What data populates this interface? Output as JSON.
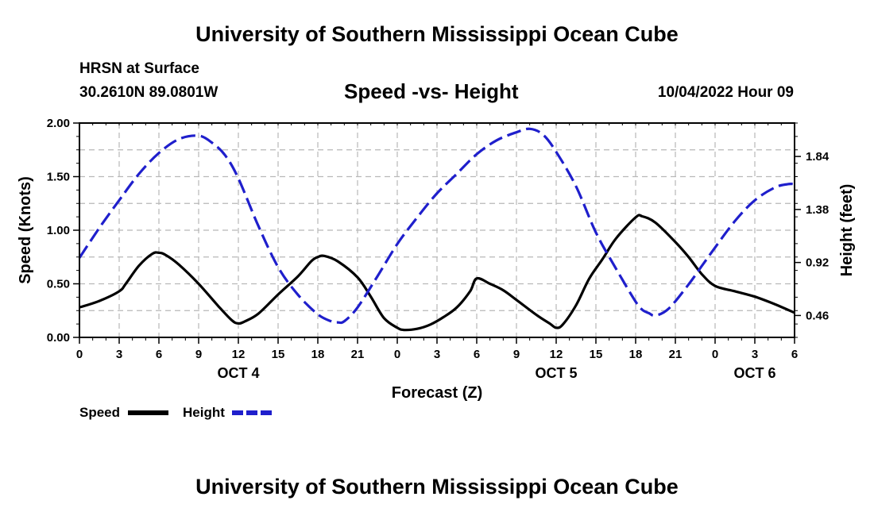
{
  "header": {
    "title": "University of Southern Mississippi Ocean Cube",
    "station": "HRSN at Surface",
    "coords": "30.2610N  89.0801W",
    "subtitle": "Speed -vs- Height",
    "datetime": "10/04/2022 Hour 09"
  },
  "footer": {
    "title": "University of Southern Mississippi Ocean Cube"
  },
  "chart_data": {
    "type": "line",
    "title": "Speed -vs- Height",
    "xlabel": "Forecast (Z)",
    "ylabel": "Speed (Knots)",
    "y2label": "Height (feet)",
    "x_range": [
      0,
      54
    ],
    "ylim": [
      0,
      2.0
    ],
    "y2lim": [
      0.27,
      2.13
    ],
    "y_ticks": [
      "0.00",
      "0.50",
      "1.00",
      "1.50",
      "2.00"
    ],
    "y_tick_values": [
      0,
      0.5,
      1.0,
      1.5,
      2.0
    ],
    "y_minor_step": 0.25,
    "y2_ticks": [
      "0.46",
      "0.92",
      "1.38",
      "1.84"
    ],
    "y2_tick_values": [
      0.46,
      0.92,
      1.38,
      1.84
    ],
    "x_ticks": [
      "0",
      "3",
      "6",
      "9",
      "12",
      "15",
      "18",
      "21",
      "0",
      "3",
      "6",
      "9",
      "12",
      "15",
      "18",
      "21",
      "0",
      "3",
      "6"
    ],
    "x_tick_values": [
      0,
      3,
      6,
      9,
      12,
      15,
      18,
      21,
      24,
      27,
      30,
      33,
      36,
      39,
      42,
      45,
      48,
      51,
      54
    ],
    "day_labels": [
      {
        "label": "OCT 4",
        "x": 12
      },
      {
        "label": "OCT 5",
        "x": 36
      },
      {
        "label": "OCT 6",
        "x": 51
      }
    ],
    "grid": true,
    "legend_position": "bottom-left",
    "series": [
      {
        "name": "Speed",
        "axis": "left",
        "color": "#000000",
        "dash": "solid",
        "x": [
          0,
          1.5,
          3,
          3.5,
          4.5,
          5.5,
          6,
          6.5,
          7.5,
          9,
          10.5,
          11.5,
          12,
          12.5,
          13.5,
          15,
          16.5,
          17.5,
          18,
          18.5,
          19.5,
          21,
          22,
          23,
          24,
          24.5,
          25.5,
          26.5,
          27.5,
          28.5,
          29.5,
          30,
          31,
          32,
          33,
          34.5,
          35.5,
          36,
          36.5,
          37.5,
          38.5,
          39.5,
          40.5,
          42,
          42.5,
          43.5,
          45,
          46,
          47,
          48,
          49.5,
          51,
          52.5,
          54
        ],
        "values": [
          0.28,
          0.34,
          0.43,
          0.5,
          0.67,
          0.78,
          0.79,
          0.77,
          0.68,
          0.5,
          0.29,
          0.16,
          0.13,
          0.15,
          0.22,
          0.4,
          0.57,
          0.71,
          0.75,
          0.76,
          0.71,
          0.56,
          0.38,
          0.18,
          0.09,
          0.07,
          0.08,
          0.12,
          0.19,
          0.28,
          0.43,
          0.55,
          0.5,
          0.44,
          0.35,
          0.21,
          0.13,
          0.09,
          0.12,
          0.3,
          0.55,
          0.73,
          0.92,
          1.12,
          1.13,
          1.07,
          0.89,
          0.75,
          0.59,
          0.48,
          0.43,
          0.38,
          0.31,
          0.23
        ]
      },
      {
        "name": "Height",
        "axis": "right",
        "color": "#1f1fcc",
        "dash": "dashed",
        "x": [
          0,
          1.5,
          3,
          4.5,
          6,
          7.5,
          9,
          10,
          11,
          12,
          13.5,
          15,
          16.5,
          18,
          19,
          19.5,
          20,
          21,
          22.5,
          24,
          25.5,
          27,
          28.5,
          30,
          31.5,
          33,
          34,
          35,
          36,
          37.5,
          39,
          40.5,
          42,
          42.5,
          43,
          43.5,
          44.5,
          46,
          47,
          48,
          49.5,
          51,
          52.5,
          53.5,
          54
        ],
        "values": [
          0.96,
          1.22,
          1.46,
          1.69,
          1.87,
          1.99,
          2.02,
          1.96,
          1.85,
          1.65,
          1.24,
          0.88,
          0.64,
          0.47,
          0.41,
          0.4,
          0.41,
          0.53,
          0.8,
          1.08,
          1.31,
          1.52,
          1.69,
          1.86,
          1.98,
          2.05,
          2.08,
          2.03,
          1.88,
          1.58,
          1.18,
          0.87,
          0.58,
          0.51,
          0.48,
          0.46,
          0.52,
          0.73,
          0.89,
          1.05,
          1.28,
          1.46,
          1.57,
          1.6,
          1.6
        ]
      }
    ]
  }
}
